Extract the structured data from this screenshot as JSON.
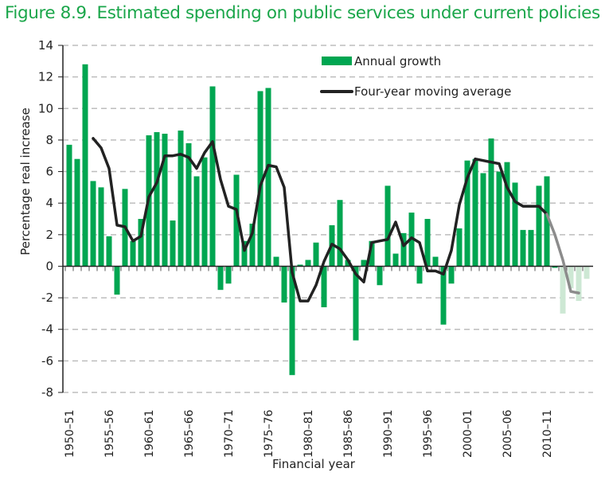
{
  "chart_data": {
    "type": "bar",
    "title": "Figure 8.9. Estimated spending on public services under current policies",
    "xlabel": "Financial year",
    "ylabel": "Percentage real increase",
    "ylim": [
      -8,
      14
    ],
    "yticks": [
      14,
      12,
      10,
      8,
      6,
      4,
      2,
      0,
      -2,
      -4,
      -6,
      -8
    ],
    "grid": true,
    "legend_placement": "top-right",
    "colors": {
      "bar": "#00a651",
      "bar_projection": "#cde8d4",
      "line": "#222222",
      "line_projection": "#8c8c8c",
      "grid": "#bdbdbd",
      "title": "#1aa64a"
    },
    "categories": [
      "1950-51",
      "1951-52",
      "1952-53",
      "1953-54",
      "1954-55",
      "1955-56",
      "1956-57",
      "1957-58",
      "1958-59",
      "1959-60",
      "1960-61",
      "1961-62",
      "1962-63",
      "1963-64",
      "1964-65",
      "1965-66",
      "1966-67",
      "1967-68",
      "1968-69",
      "1969-70",
      "1970-71",
      "1971-72",
      "1972-73",
      "1973-74",
      "1974-75",
      "1975-76",
      "1976-77",
      "1977-78",
      "1978-79",
      "1979-80",
      "1980-81",
      "1981-82",
      "1982-83",
      "1983-84",
      "1984-85",
      "1985-86",
      "1986-87",
      "1987-88",
      "1988-89",
      "1989-90",
      "1990-91",
      "1991-92",
      "1992-93",
      "1993-94",
      "1994-95",
      "1995-96",
      "1996-97",
      "1997-98",
      "1998-99",
      "1999-00",
      "2000-01",
      "2001-02",
      "2002-03",
      "2003-04",
      "2004-05",
      "2005-06",
      "2006-07",
      "2007-08",
      "2008-09",
      "2009-10",
      "2010-11",
      "2011-12",
      "2012-13",
      "2013-14",
      "2014-15",
      "2015-16"
    ],
    "xtick_labels": [
      "1950–51",
      "1955–56",
      "1960–61",
      "1965–66",
      "1970–71",
      "1975–76",
      "1980–81",
      "1985–86",
      "1990–91",
      "1995–96",
      "2000–01",
      "2005–06",
      "2010–11"
    ],
    "xtick_every": 5,
    "projection_start_index": 61,
    "series": [
      {
        "name": "Annual growth",
        "kind": "bar",
        "values": [
          7.7,
          6.8,
          12.8,
          5.4,
          5.0,
          1.9,
          -1.8,
          4.9,
          1.6,
          3.0,
          8.3,
          8.5,
          8.4,
          2.9,
          8.6,
          7.8,
          5.7,
          6.9,
          11.4,
          -1.5,
          -1.1,
          5.8,
          1.6,
          2.7,
          11.1,
          11.3,
          0.6,
          -2.3,
          -6.9,
          0.1,
          0.4,
          1.5,
          -2.6,
          2.6,
          4.2,
          0.4,
          -4.7,
          0.4,
          1.6,
          -1.2,
          5.1,
          0.8,
          2.1,
          3.4,
          -1.1,
          3.0,
          0.6,
          -3.7,
          -1.1,
          2.4,
          6.7,
          6.8,
          5.9,
          8.1,
          6.0,
          6.6,
          5.3,
          2.3,
          2.3,
          5.1,
          5.7,
          -0.1,
          -3.0,
          -1.4,
          -2.2,
          -0.8
        ]
      },
      {
        "name": "Four-year moving average",
        "kind": "line",
        "values": [
          null,
          null,
          null,
          8.1,
          7.5,
          6.2,
          2.6,
          2.5,
          1.6,
          1.9,
          4.4,
          5.3,
          7.0,
          7.0,
          7.1,
          6.9,
          6.2,
          7.2,
          7.9,
          5.5,
          3.8,
          3.6,
          1.0,
          2.1,
          5.1,
          6.4,
          6.3,
          5.0,
          -0.4,
          -2.2,
          -2.2,
          -1.2,
          0.3,
          1.4,
          1.1,
          0.4,
          -0.5,
          -1.0,
          1.5,
          1.6,
          1.7,
          2.8,
          1.3,
          1.8,
          1.5,
          -0.3,
          -0.3,
          -0.5,
          1.0,
          3.9,
          5.6,
          6.8,
          6.7,
          6.6,
          6.5,
          5.0,
          4.1,
          3.8,
          3.8,
          3.8,
          3.3,
          2.0,
          0.4,
          -1.6,
          -1.7,
          null
        ]
      }
    ],
    "legend": [
      {
        "label": "Annual growth",
        "kind": "bar"
      },
      {
        "label": "Four-year moving average",
        "kind": "line"
      }
    ]
  }
}
